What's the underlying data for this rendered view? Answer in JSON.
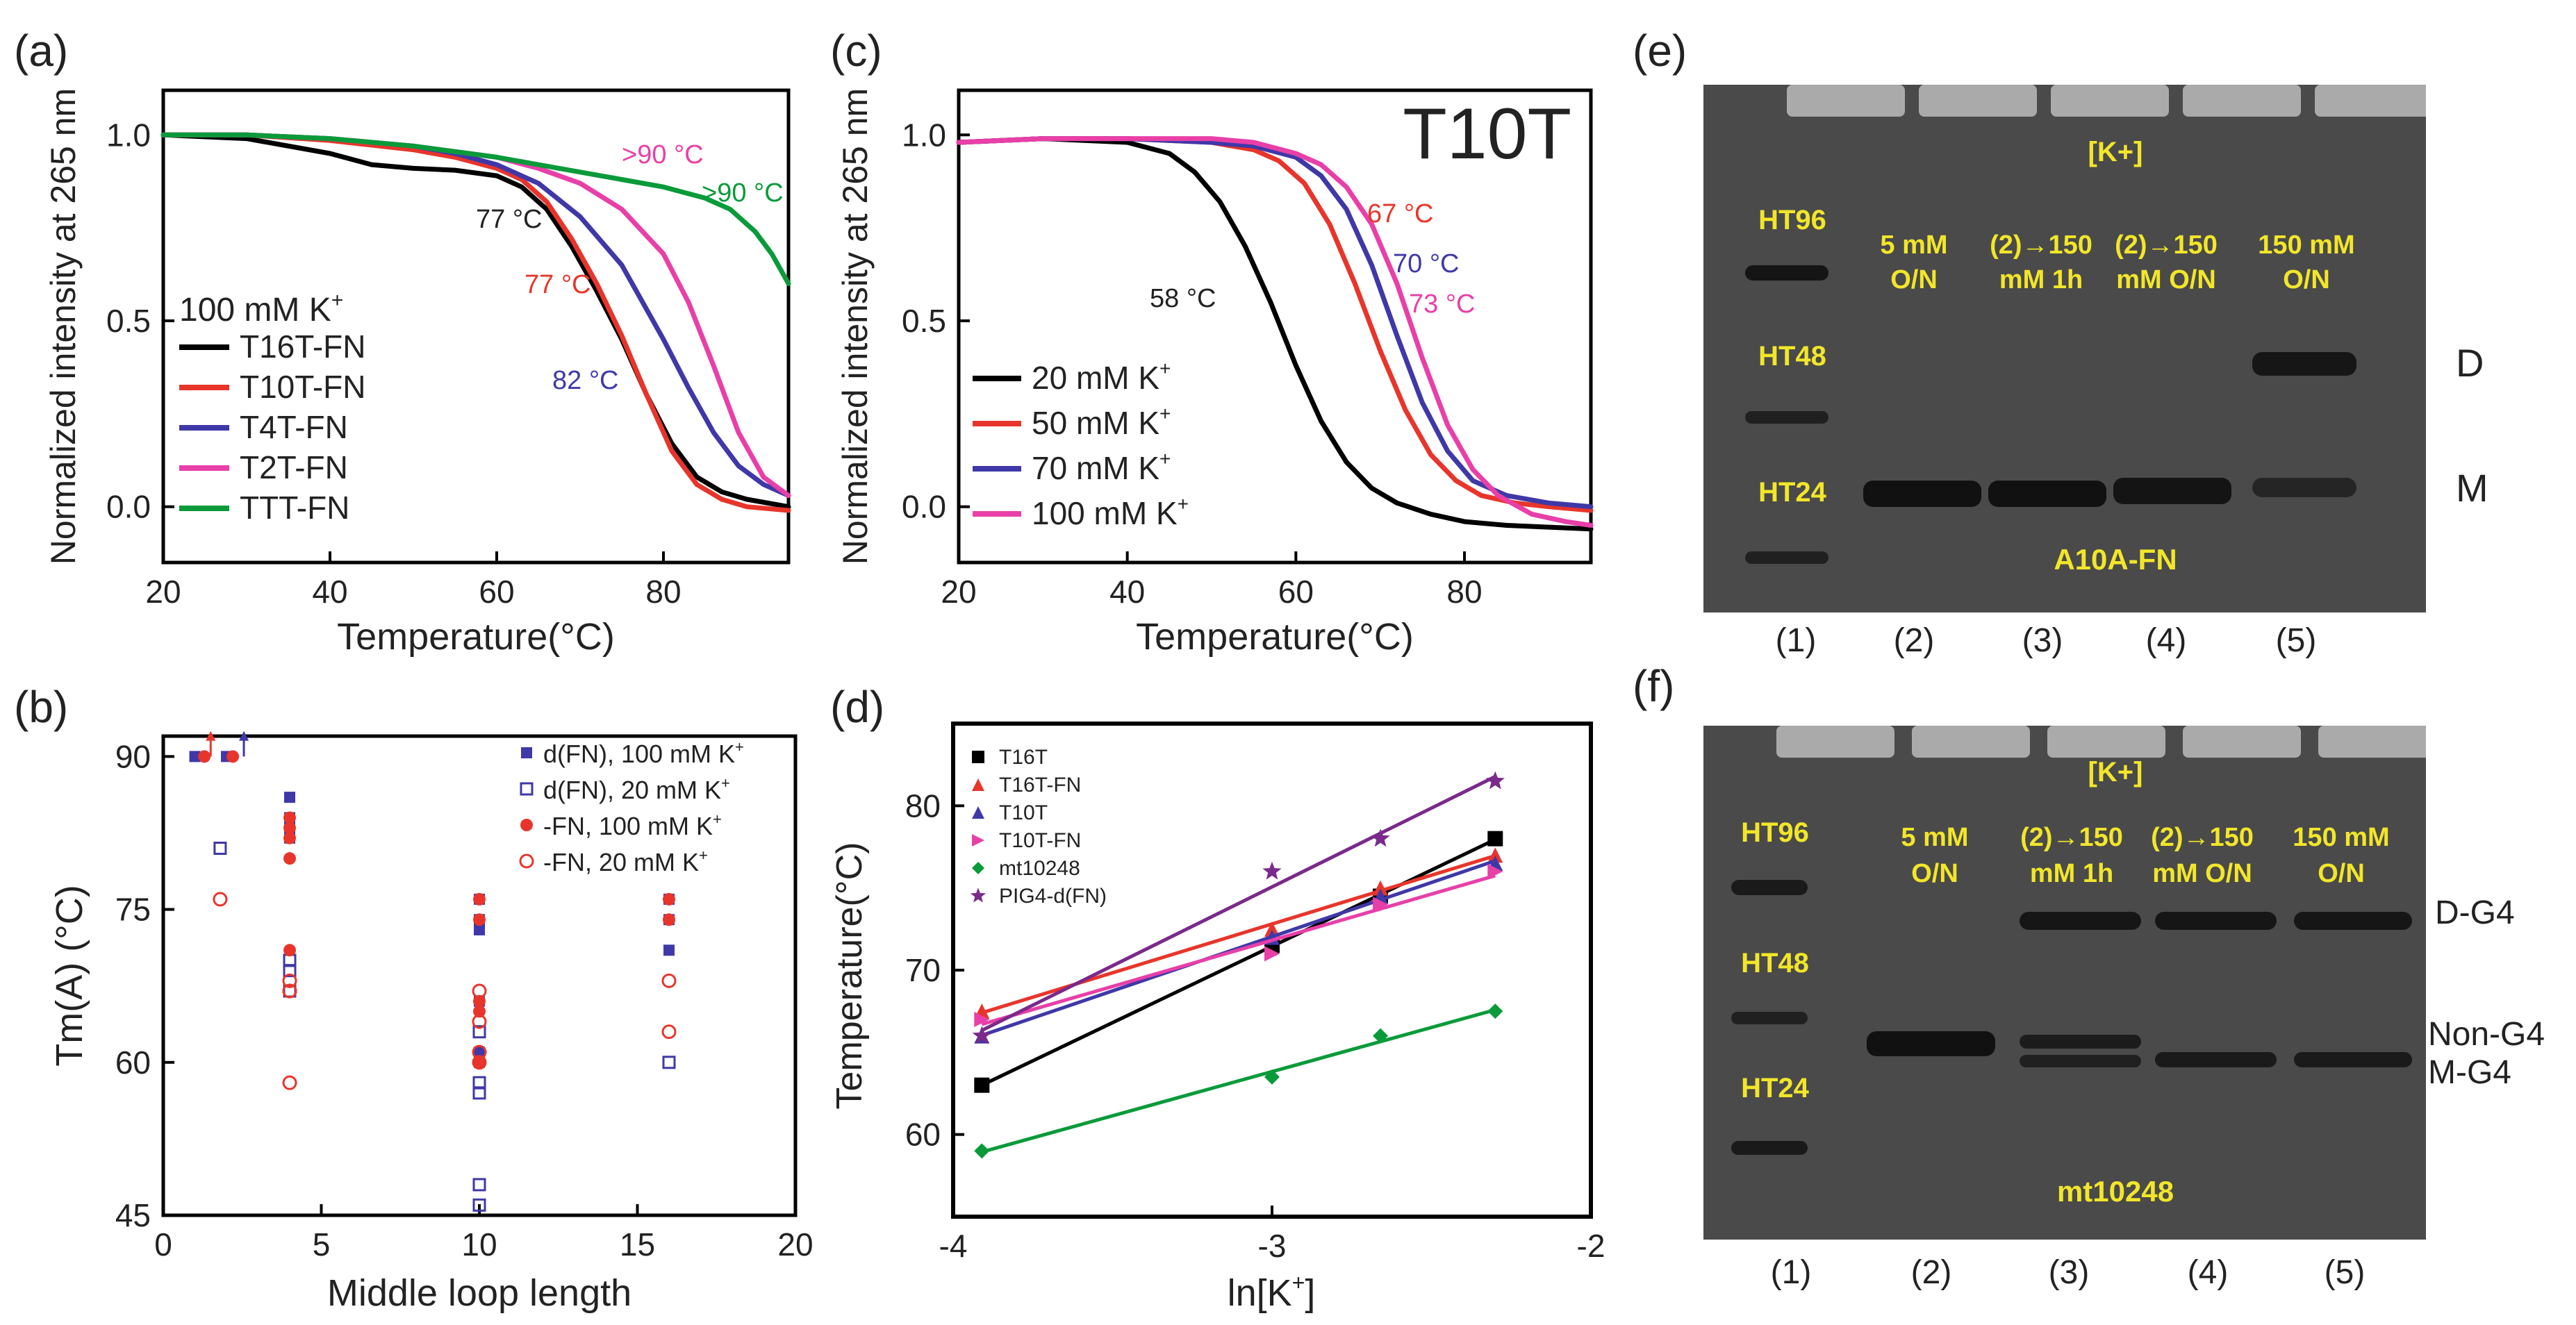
{
  "panels": {
    "a": {
      "label": "(a)",
      "ylabel": "Normalized intensity at 265 nm",
      "xlabel": "Temperature(°C)",
      "legend_title": "100 mM K",
      "legend_title_sup": "+",
      "legend": [
        "T16T-FN",
        "T10T-FN",
        "T4T-FN",
        "T2T-FN",
        "TTT-FN"
      ],
      "annotations": [
        "77 °C",
        "77 °C",
        "82 °C",
        ">90 °C",
        ">90 °C"
      ],
      "colors": [
        "#000000",
        "#e8352b",
        "#3f38a8",
        "#e83fa8",
        "#0a9a3a"
      ]
    },
    "b": {
      "label": "(b)",
      "ylabel": "Tm(A) (°C)",
      "xlabel": "Middle loop length",
      "legend": [
        "d(FN), 100 mM K",
        "d(FN), 20 mM K",
        "-FN, 100 mM K",
        "-FN, 20 mM K"
      ],
      "legend_sup": "+"
    },
    "c": {
      "label": "(c)",
      "title": "T10T",
      "ylabel": "Normalized intensity at 265 nm",
      "xlabel": "Temperature(°C)",
      "legend": [
        "20 mM K",
        "50 mM K",
        "70 mM K",
        "100 mM K"
      ],
      "legend_sup": "+",
      "annotations": [
        "58 °C",
        "67 °C",
        "70 °C",
        "73 °C"
      ],
      "colors": [
        "#000000",
        "#e8352b",
        "#3f38a8",
        "#e83fa8"
      ]
    },
    "d": {
      "label": "(d)",
      "ylabel": "Temperature(°C)",
      "xlabel": "ln[K",
      "xlabel_tail": "]",
      "legend": [
        "T16T",
        "T16T-FN",
        "T10T",
        "T10T-FN",
        "mt10248",
        "PIG4-d(FN)"
      ],
      "colors": [
        "#000000",
        "#e8352b",
        "#3f38a8",
        "#e83fa8",
        "#0a9a3a",
        "#7a2a8a"
      ]
    },
    "e": {
      "label": "(e)",
      "top_label": "[K+]",
      "ladder": [
        "HT96",
        "HT48",
        "HT24"
      ],
      "lanes": [
        "5 mM O/N",
        "(2)→150 mM 1h",
        "(2)→150 mM O/N",
        "150 mM O/N"
      ],
      "lane_lines": [
        [
          "5 mM",
          "O/N"
        ],
        [
          "(2)→150",
          "mM  1h"
        ],
        [
          "(2)→150",
          "mM  O/N"
        ],
        [
          "150  mM",
          "O/N"
        ]
      ],
      "sample": "A10A-FN",
      "right_labels": [
        "D",
        "M"
      ],
      "lane_numbers": [
        "(1)",
        "(2)",
        "(3)",
        "(4)",
        "(5)"
      ]
    },
    "f": {
      "label": "(f)",
      "top_label": "[K+]",
      "ladder": [
        "HT96",
        "HT48",
        "HT24"
      ],
      "lane_lines": [
        [
          "5  mM",
          "O/N"
        ],
        [
          "(2)→150",
          "mM   1h"
        ],
        [
          "(2)→150",
          "mM   O/N"
        ],
        [
          "150  mM",
          "O/N"
        ]
      ],
      "sample": "mt10248",
      "right_labels": [
        "D-G4",
        "Non-G4",
        "M-G4"
      ],
      "lane_numbers": [
        "(1)",
        "(2)",
        "(3)",
        "(4)",
        "(5)"
      ]
    }
  },
  "chart_data": [
    {
      "id": "a",
      "type": "line",
      "xlim": [
        20,
        95
      ],
      "ylim": [
        -0.15,
        1.12
      ],
      "xticks": [
        20,
        40,
        60,
        80
      ],
      "yticks": [
        0.0,
        0.5,
        1.0
      ],
      "series": [
        {
          "name": "T16T-FN",
          "x": [
            20,
            30,
            40,
            45,
            50,
            55,
            60,
            63,
            66,
            69,
            72,
            75,
            78,
            81,
            84,
            87,
            90,
            95
          ],
          "y": [
            1.0,
            0.99,
            0.95,
            0.92,
            0.91,
            0.905,
            0.89,
            0.86,
            0.8,
            0.7,
            0.58,
            0.45,
            0.3,
            0.17,
            0.08,
            0.04,
            0.02,
            0.0
          ]
        },
        {
          "name": "T10T-FN",
          "x": [
            20,
            30,
            40,
            50,
            55,
            60,
            63,
            66,
            69,
            72,
            75,
            78,
            81,
            84,
            87,
            90,
            95
          ],
          "y": [
            1.0,
            1.0,
            0.985,
            0.96,
            0.94,
            0.91,
            0.88,
            0.82,
            0.72,
            0.6,
            0.46,
            0.3,
            0.15,
            0.06,
            0.02,
            0.0,
            -0.01
          ]
        },
        {
          "name": "T4T-FN",
          "x": [
            20,
            30,
            40,
            50,
            55,
            60,
            65,
            70,
            75,
            80,
            83,
            86,
            89,
            92,
            95
          ],
          "y": [
            1.0,
            1.0,
            0.99,
            0.97,
            0.95,
            0.92,
            0.87,
            0.78,
            0.65,
            0.45,
            0.32,
            0.2,
            0.11,
            0.06,
            0.03
          ]
        },
        {
          "name": "T2T-FN",
          "x": [
            20,
            30,
            40,
            50,
            60,
            65,
            70,
            75,
            80,
            83,
            86,
            89,
            92,
            95
          ],
          "y": [
            1.0,
            1.0,
            0.99,
            0.97,
            0.94,
            0.91,
            0.87,
            0.8,
            0.68,
            0.55,
            0.38,
            0.2,
            0.08,
            0.03
          ]
        },
        {
          "name": "TTT-FN",
          "x": [
            20,
            30,
            40,
            50,
            60,
            70,
            75,
            80,
            85,
            88,
            91,
            93,
            95
          ],
          "y": [
            1.0,
            1.0,
            0.99,
            0.97,
            0.94,
            0.9,
            0.88,
            0.86,
            0.83,
            0.8,
            0.74,
            0.68,
            0.6
          ]
        }
      ]
    },
    {
      "id": "b",
      "type": "scatter",
      "xlim": [
        0,
        20
      ],
      "ylim": [
        45,
        92
      ],
      "xticks": [
        0,
        5,
        10,
        15,
        20
      ],
      "yticks": [
        45,
        60,
        75,
        90
      ],
      "series": [
        {
          "name": "d(FN), 100 mM K+",
          "marker": "filled-square",
          "color": "#3f38a8",
          "x": [
            1,
            2,
            4,
            4,
            4,
            4,
            10,
            10,
            10,
            10,
            10,
            10,
            16,
            16,
            16
          ],
          "y": [
            90,
            90,
            86,
            84,
            83,
            82,
            76,
            74,
            73,
            66,
            61,
            60,
            76,
            74,
            71
          ]
        },
        {
          "name": "d(FN), 20 mM K+",
          "marker": "open-square",
          "color": "#3f38a8",
          "x": [
            1.8,
            4,
            4,
            4,
            10,
            10,
            10,
            10,
            10,
            16
          ],
          "y": [
            81,
            70,
            69,
            67,
            63,
            58,
            57,
            48,
            46,
            60
          ]
        },
        {
          "name": "-FN, 100 mM K+",
          "marker": "filled-circle",
          "color": "#e8352b",
          "x": [
            1.3,
            2.2,
            4,
            4,
            4,
            4,
            4,
            10,
            10,
            10,
            10,
            10,
            16,
            16
          ],
          "y": [
            90,
            90,
            84,
            83,
            82,
            80,
            71,
            76,
            74,
            66,
            65,
            60,
            76,
            74
          ]
        },
        {
          "name": "-FN, 20 mM K+",
          "marker": "open-circle",
          "color": "#e8352b",
          "x": [
            1.8,
            4,
            4,
            4,
            4,
            10,
            10,
            10,
            10,
            16,
            16
          ],
          "y": [
            76,
            68,
            67,
            67,
            58,
            67,
            64,
            61,
            60,
            68,
            63
          ]
        }
      ]
    },
    {
      "id": "c",
      "type": "line",
      "xlim": [
        20,
        95
      ],
      "ylim": [
        -0.15,
        1.12
      ],
      "xticks": [
        20,
        40,
        60,
        80
      ],
      "yticks": [
        0.0,
        0.5,
        1.0
      ],
      "series": [
        {
          "name": "20 mM K+",
          "x": [
            20,
            30,
            40,
            45,
            48,
            51,
            54,
            57,
            60,
            63,
            66,
            69,
            72,
            76,
            80,
            85,
            90,
            95
          ],
          "y": [
            0.98,
            0.99,
            0.98,
            0.95,
            0.9,
            0.82,
            0.7,
            0.55,
            0.38,
            0.23,
            0.12,
            0.05,
            0.01,
            -0.02,
            -0.04,
            -0.05,
            -0.055,
            -0.06
          ]
        },
        {
          "name": "50 mM K+",
          "x": [
            20,
            30,
            40,
            50,
            55,
            58,
            61,
            64,
            67,
            70,
            73,
            76,
            79,
            82,
            86,
            90,
            95
          ],
          "y": [
            0.98,
            0.99,
            0.99,
            0.98,
            0.96,
            0.93,
            0.87,
            0.76,
            0.6,
            0.42,
            0.26,
            0.14,
            0.07,
            0.03,
            0.01,
            0.0,
            -0.01
          ]
        },
        {
          "name": "70 mM K+",
          "x": [
            20,
            30,
            40,
            50,
            55,
            60,
            63,
            66,
            69,
            72,
            75,
            78,
            81,
            85,
            90,
            95
          ],
          "y": [
            0.98,
            0.99,
            0.99,
            0.98,
            0.97,
            0.94,
            0.89,
            0.8,
            0.65,
            0.46,
            0.28,
            0.15,
            0.07,
            0.03,
            0.01,
            0.0
          ]
        },
        {
          "name": "100 mM K+",
          "x": [
            20,
            30,
            40,
            50,
            55,
            60,
            63,
            66,
            69,
            72,
            75,
            78,
            81,
            84,
            88,
            92,
            95
          ],
          "y": [
            0.98,
            0.99,
            0.99,
            0.99,
            0.98,
            0.95,
            0.92,
            0.86,
            0.76,
            0.6,
            0.4,
            0.22,
            0.1,
            0.03,
            -0.02,
            -0.04,
            -0.05
          ]
        }
      ]
    },
    {
      "id": "d",
      "type": "scatter",
      "xlim": [
        -4,
        -2
      ],
      "ylim": [
        55,
        85
      ],
      "xticks": [
        -4,
        -3,
        -2
      ],
      "yticks": [
        60,
        70,
        80
      ],
      "series": [
        {
          "name": "T16T",
          "marker": "square",
          "x": [
            -3.91,
            -3.0,
            -2.66,
            -2.3
          ],
          "y": [
            63,
            71.5,
            74.5,
            78
          ]
        },
        {
          "name": "T16T-FN",
          "marker": "triangle-up",
          "x": [
            -3.91,
            -3.0,
            -2.66,
            -2.3
          ],
          "y": [
            67.5,
            72.5,
            75,
            77
          ]
        },
        {
          "name": "T10T",
          "marker": "triangle-up",
          "x": [
            -3.91,
            -3.0,
            -2.66,
            -2.3
          ],
          "y": [
            66,
            72,
            74.5,
            76.5
          ]
        },
        {
          "name": "T10T-FN",
          "marker": "triangle-right",
          "x": [
            -3.91,
            -3.0,
            -2.66,
            -2.3
          ],
          "y": [
            67,
            71,
            74,
            76
          ]
        },
        {
          "name": "mt10248",
          "marker": "diamond",
          "x": [
            -3.91,
            -3.0,
            -2.66,
            -2.3
          ],
          "y": [
            59,
            63.5,
            66,
            67.5
          ]
        },
        {
          "name": "PIG4-d(FN)",
          "marker": "star",
          "x": [
            -3.91,
            -3.0,
            -2.66,
            -2.3
          ],
          "y": [
            66,
            76,
            78,
            81.5
          ]
        }
      ]
    }
  ]
}
